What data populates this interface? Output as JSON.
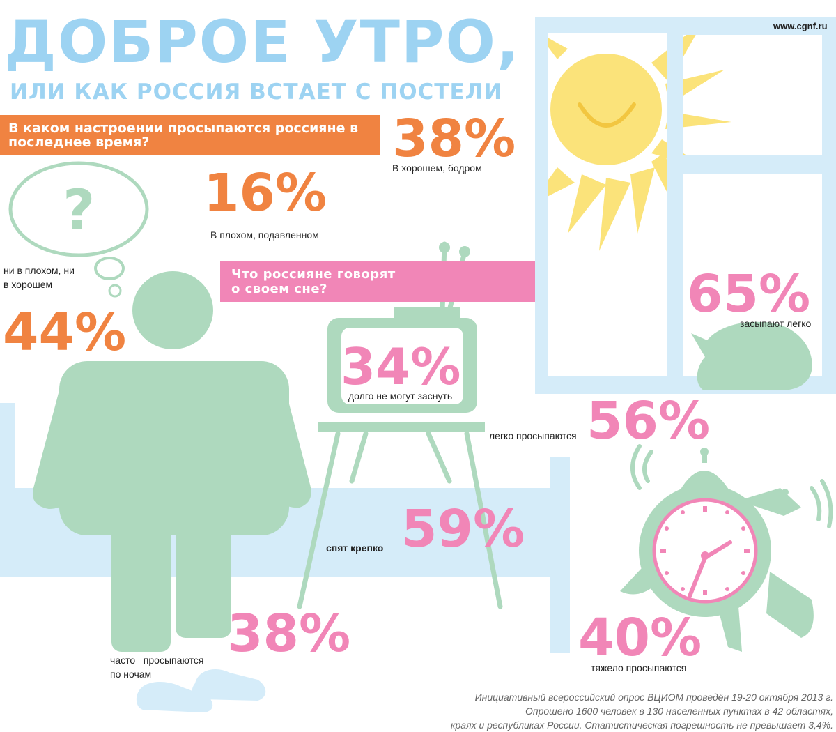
{
  "header": {
    "title": "ДОБРОЕ УТРО,",
    "subtitle": "ИЛИ КАК РОССИЯ ВСТАЕТ С ПОСТЕЛИ",
    "site": "www.cgnf.ru"
  },
  "mood": {
    "question": "В каком настроении просыпаются россияне в последнее время?",
    "good_pct": "38%",
    "good_label": "В хорошем, бодром",
    "bad_pct": "16%",
    "bad_label": "В плохом, подавленном",
    "neutral_pct": "44%",
    "neutral_label_1": "ни в плохом, ни",
    "neutral_label_2": "в хорошем",
    "question_mark": "?"
  },
  "sleep": {
    "question_1": "Что россияне говорят",
    "question_2": "о своем сне?",
    "fall_asleep_easy_pct": "65%",
    "fall_asleep_easy_label": "засыпают легко",
    "cant_sleep_pct": "34%",
    "cant_sleep_label": "долго не могут заснуть",
    "wake_easy_pct": "56%",
    "wake_easy_label": "легко просыпаются",
    "sleep_sound_pct": "59%",
    "sleep_sound_label": "спят крепко",
    "wake_at_night_pct": "38%",
    "wake_at_night_label_1": "часто   просыпаются",
    "wake_at_night_label_2": "по ночам",
    "wake_hard_pct": "40%",
    "wake_hard_label": "тяжело просыпаются"
  },
  "footer": {
    "line1": "Инициативный всероссийский опрос ВЦИОМ проведён 19-20 октября 2013 г.",
    "line2": "Опрошено 1600 человек в 130 населенных пунктах в 42 областях,",
    "line3": "краях и республиках России. Статистическая погрешность не превышает 3,4%."
  },
  "colors": {
    "blue": "#9dd3f2",
    "light_blue": "#d5ecf9",
    "green": "#aed9be",
    "orange": "#f08341",
    "pink": "#f186b7",
    "yellow": "#fbe37a"
  },
  "icons": [
    "window-icon",
    "sun-icon",
    "cat-icon",
    "tv-icon",
    "person-icon",
    "bed-icon",
    "thought-bubble-icon",
    "alarm-clock-icon",
    "slippers-icon"
  ]
}
